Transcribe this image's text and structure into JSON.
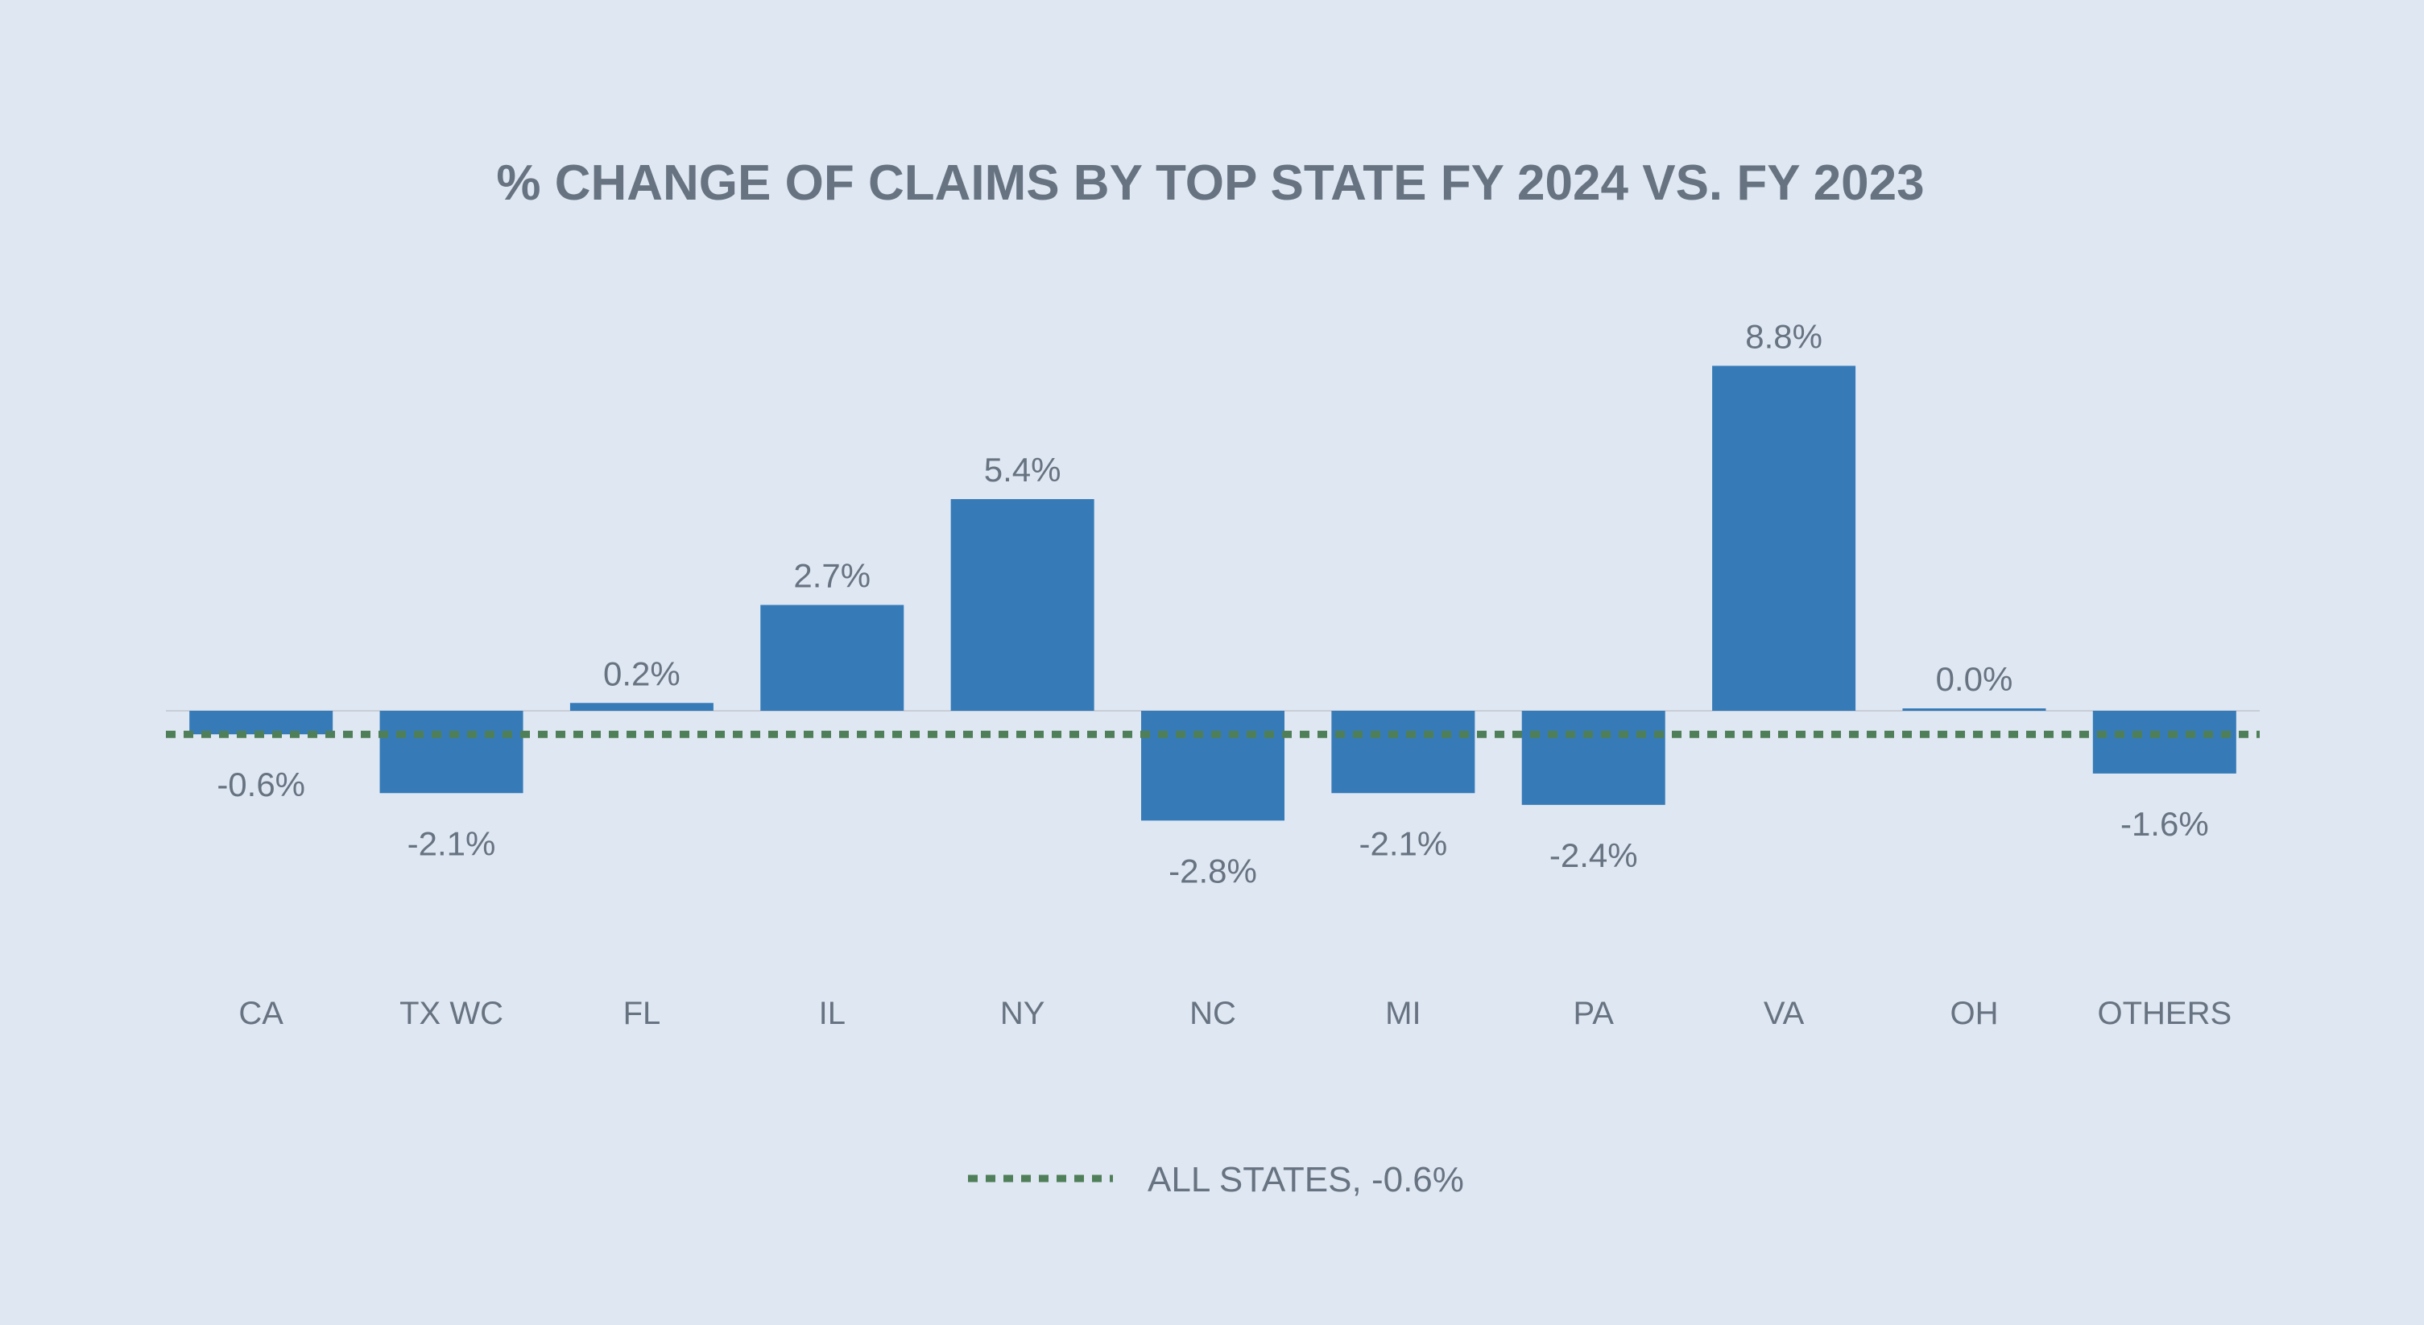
{
  "chart_data": {
    "type": "bar",
    "title": "% CHANGE OF CLAIMS BY TOP STATE FY 2024 VS. FY 2023",
    "categories": [
      "CA",
      "TX WC",
      "FL",
      "IL",
      "NY",
      "NC",
      "MI",
      "PA",
      "VA",
      "OH",
      "OTHERS"
    ],
    "values": [
      -0.6,
      -2.1,
      0.2,
      2.7,
      5.4,
      -2.8,
      -2.1,
      -2.4,
      8.8,
      0.0,
      -1.6
    ],
    "data_labels": [
      "-0.6%",
      "-2.1%",
      "0.2%",
      "2.7%",
      "5.4%",
      "-2.8%",
      "-2.1%",
      "-2.4%",
      "8.8%",
      "0.0%",
      "-1.6%"
    ],
    "ylim": [
      -5,
      10
    ],
    "reference_line": {
      "name": "ALL STATES, -0.6%",
      "value": -0.6,
      "style": "dotted"
    },
    "legend": {
      "position": "bottom",
      "entries": [
        "ALL STATES, -0.6%"
      ]
    },
    "grid": false,
    "colors": {
      "bar": "#367bb8",
      "reference_line": "#4f7f58",
      "text": "#677381",
      "zero_line": "#c9ced6",
      "background": "#dfe7f3"
    }
  }
}
